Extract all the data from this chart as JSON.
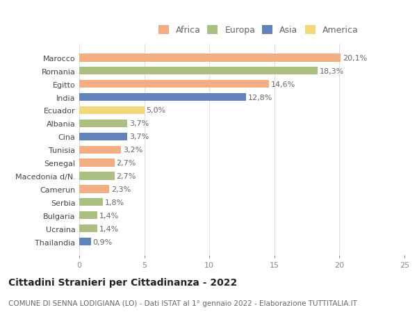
{
  "categories": [
    "Marocco",
    "Romania",
    "Egitto",
    "India",
    "Ecuador",
    "Albania",
    "Cina",
    "Tunisia",
    "Senegal",
    "Macedonia d/N.",
    "Camerun",
    "Serbia",
    "Bulgaria",
    "Ucraina",
    "Thailandia"
  ],
  "values": [
    20.1,
    18.3,
    14.6,
    12.8,
    5.0,
    3.7,
    3.7,
    3.2,
    2.7,
    2.7,
    2.3,
    1.8,
    1.4,
    1.4,
    0.9
  ],
  "labels": [
    "20,1%",
    "18,3%",
    "14,6%",
    "12,8%",
    "5,0%",
    "3,7%",
    "3,7%",
    "3,2%",
    "2,7%",
    "2,7%",
    "2,3%",
    "1,8%",
    "1,4%",
    "1,4%",
    "0,9%"
  ],
  "continents": [
    "Africa",
    "Europa",
    "Africa",
    "Asia",
    "America",
    "Europa",
    "Asia",
    "Africa",
    "Africa",
    "Europa",
    "Africa",
    "Europa",
    "Europa",
    "Europa",
    "Asia"
  ],
  "colors": {
    "Africa": "#F2AE82",
    "Europa": "#ABBF82",
    "Asia": "#6282BA",
    "America": "#F2D878"
  },
  "legend_order": [
    "Africa",
    "Europa",
    "Asia",
    "America"
  ],
  "xlim": [
    0,
    25
  ],
  "xticks": [
    0,
    5,
    10,
    15,
    20,
    25
  ],
  "title": "Cittadini Stranieri per Cittadinanza - 2022",
  "subtitle": "COMUNE DI SENNA LODIGIANA (LO) - Dati ISTAT al 1° gennaio 2022 - Elaborazione TUTTITALIA.IT",
  "background_color": "#ffffff",
  "bar_height": 0.6,
  "title_fontsize": 10,
  "subtitle_fontsize": 7.5,
  "tick_fontsize": 8,
  "label_fontsize": 8,
  "legend_fontsize": 9
}
